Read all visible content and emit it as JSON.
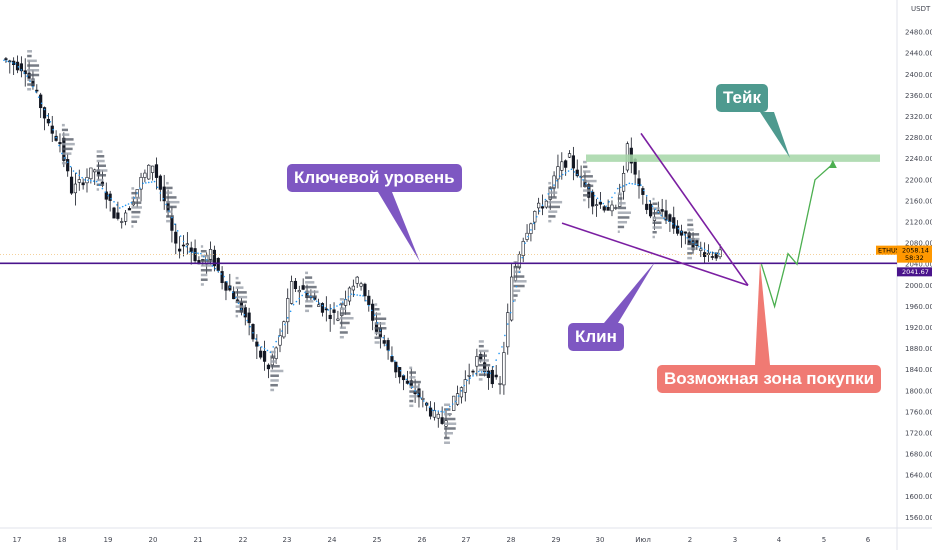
{
  "chart_data": {
    "type": "candlestick",
    "symbol_label": "ETHUSDT",
    "currency_label": "USDT",
    "current_price": 2058.14,
    "countdown": "58:32",
    "key_level_price": 2041.67,
    "y_ticks": [
      1560,
      1600,
      1640,
      1680,
      1720,
      1760,
      1800,
      1840,
      1880,
      1920,
      1960,
      2000,
      2040,
      2080,
      2120,
      2160,
      2200,
      2240,
      2280,
      2320,
      2360,
      2400,
      2440,
      2480
    ],
    "ylim": [
      1540,
      2520
    ],
    "x_ticks": [
      "17",
      "18",
      "19",
      "20",
      "21",
      "22",
      "23",
      "24",
      "25",
      "26",
      "27",
      "28",
      "29",
      "30",
      "Июл",
      "2",
      "3",
      "4",
      "5",
      "6"
    ],
    "series": [
      {
        "values": [
          2430,
          2420,
          2410,
          2360,
          2300,
          2270,
          2180,
          2200,
          2220,
          2170,
          2120,
          2150,
          2200,
          2230,
          2160,
          2070,
          2080,
          2040,
          2060,
          2010,
          1980,
          1940,
          1880,
          1840,
          1900,
          2000,
          1990,
          1970,
          1950,
          1940,
          2000,
          2010,
          1930,
          1890,
          1840,
          1810,
          1790,
          1760,
          1740,
          1780,
          1820,
          1860,
          1830,
          1810,
          2010,
          2090,
          2140,
          2160,
          2220,
          2240,
          2200,
          2160,
          2150,
          2140,
          2260,
          2180,
          2130,
          2140,
          2110,
          2090,
          2070,
          2060,
          2058
        ]
      }
    ],
    "projection_path": [
      [
        2.6,
        2040
      ],
      [
        2.9,
        1960
      ],
      [
        3.2,
        2060
      ],
      [
        3.4,
        2040
      ],
      [
        3.8,
        2200
      ],
      [
        4.2,
        2230
      ]
    ],
    "annotations": {
      "key_level": "Ключевой уровень",
      "wedge": "Клин",
      "take": "Тейк",
      "buy_zone": "Возможная зона покупки"
    },
    "colors": {
      "candle": "#131722",
      "key_level_line": "#4a148c",
      "wedge": "#7b1fa2",
      "projection": "#4caf50",
      "target_zone": "#a5d6a7",
      "key_label_bg": "#7e57c2",
      "wedge_label_bg": "#7e57c2",
      "take_label_bg": "#4e9a8f",
      "buy_label_bg": "#f07a73",
      "price_tag": "#ff9800",
      "ma_dots": "#2196f3"
    }
  }
}
